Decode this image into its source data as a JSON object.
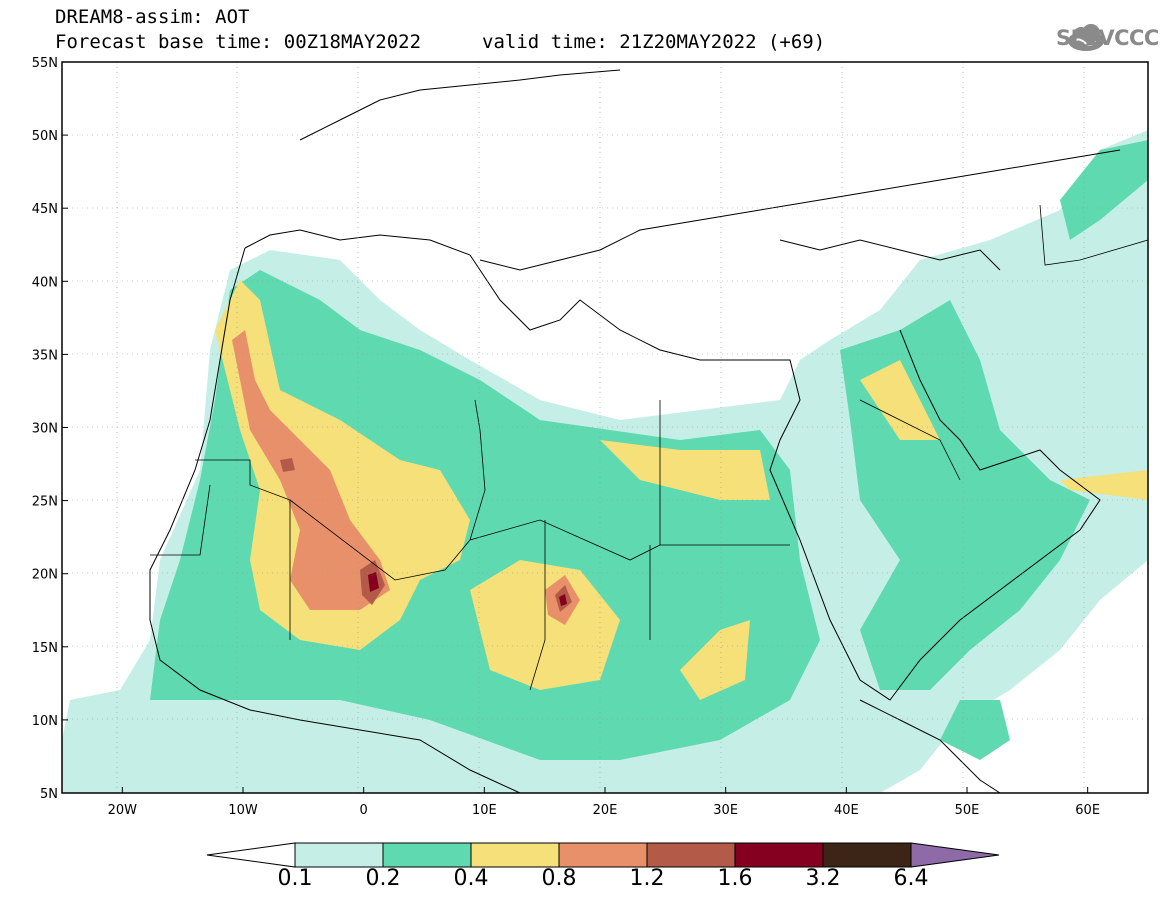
{
  "header": {
    "title": "DREAM8-assim: AOT",
    "base_time": "Forecast base time: 00Z18MAY2022",
    "valid_time": "valid time: 21Z20MAY2022 (+69)"
  },
  "logo": {
    "text": "SEEVCCC",
    "icon": "cloud-icon"
  },
  "map": {
    "lat_labels": [
      "55N",
      "50N",
      "45N",
      "40N",
      "35N",
      "30N",
      "25N",
      "20N",
      "15N",
      "10N",
      "5N"
    ],
    "lon_labels": [
      "20W",
      "10W",
      "0",
      "10E",
      "20E",
      "30E",
      "40E",
      "50E",
      "60E"
    ],
    "extent": {
      "lon": [
        -25,
        65
      ],
      "lat": [
        5,
        55
      ]
    }
  },
  "colorbar": {
    "labels": [
      "0.1",
      "0.2",
      "0.4",
      "0.8",
      "1.2",
      "1.6",
      "3.2",
      "6.4"
    ],
    "colors": [
      "#ffffff",
      "#c5efe6",
      "#5fd9b0",
      "#f5e07a",
      "#e8906a",
      "#b45a48",
      "#850020",
      "#3c2417",
      "#8e6aa8"
    ]
  }
}
